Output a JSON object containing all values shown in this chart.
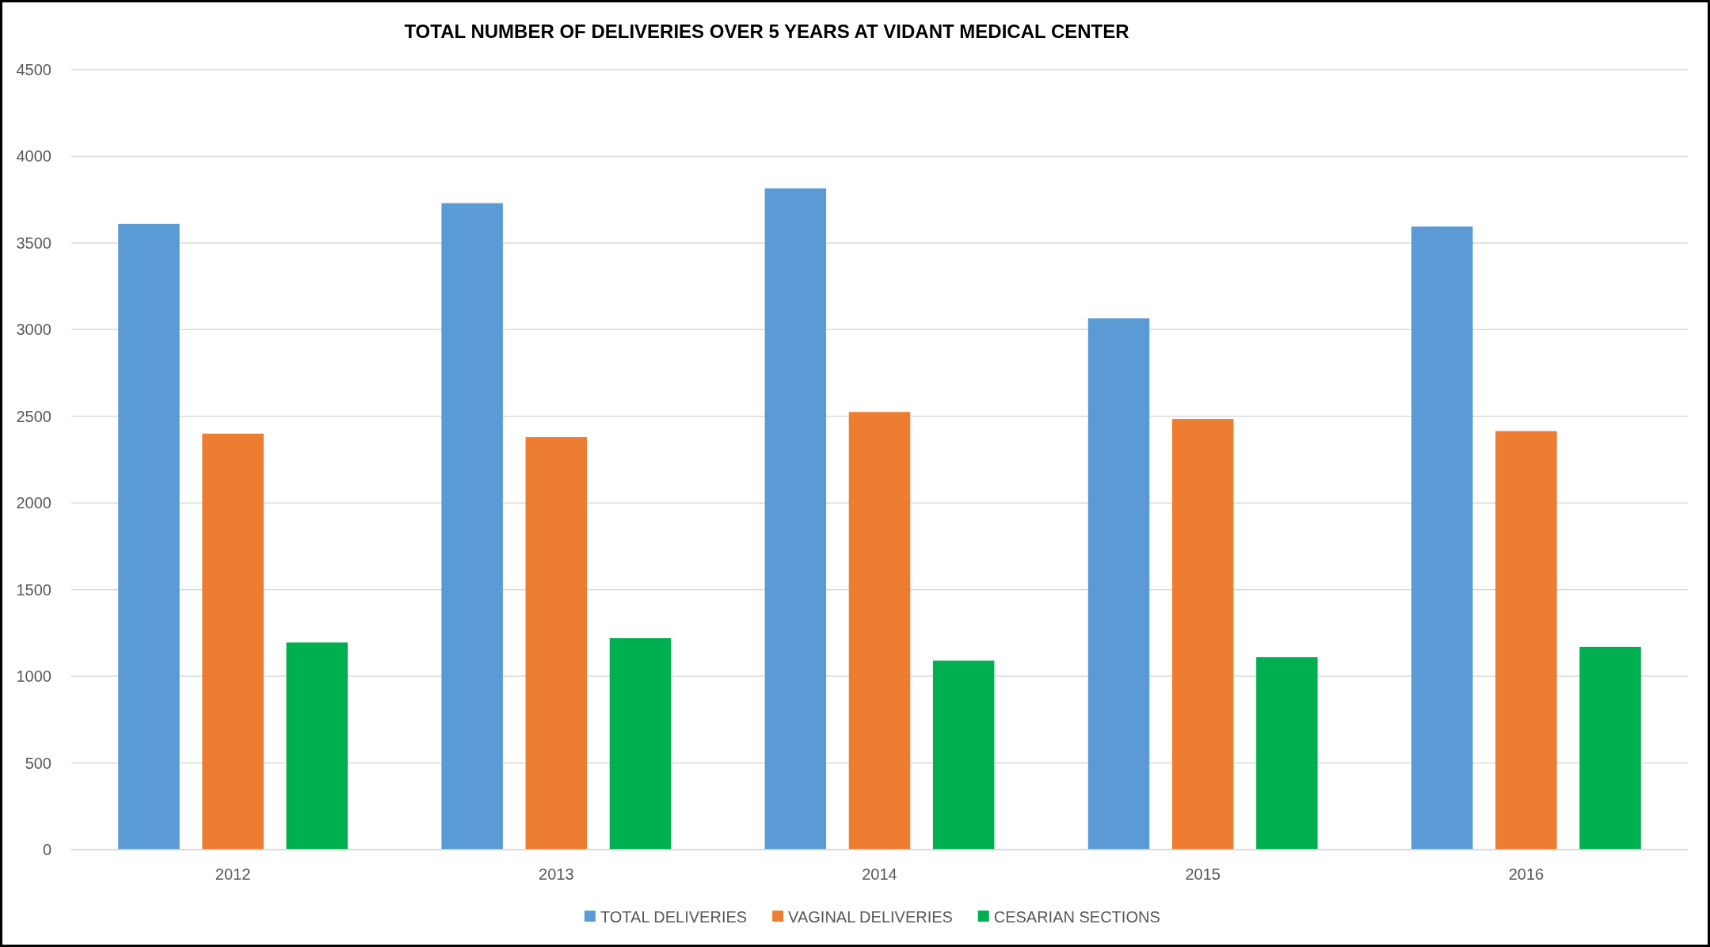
{
  "chart_data": {
    "type": "bar",
    "title": "TOTAL NUMBER OF DELIVERIES OVER 5 YEARS AT VIDANT MEDICAL CENTER",
    "categories": [
      "2012",
      "2013",
      "2014",
      "2015",
      "2016"
    ],
    "series": [
      {
        "name": "TOTAL DELIVERIES",
        "color": "#5b9bd5",
        "values": [
          3610,
          3730,
          3815,
          3065,
          3595
        ]
      },
      {
        "name": "VAGINAL DELIVERIES",
        "color": "#ed7d31",
        "values": [
          2400,
          2380,
          2525,
          2485,
          2415
        ]
      },
      {
        "name": "CESARIAN SECTIONS",
        "color": "#00b050",
        "values": [
          1195,
          1220,
          1090,
          1110,
          1170
        ]
      }
    ],
    "ylim": [
      0,
      4500
    ],
    "yticks": [
      0,
      500,
      1000,
      1500,
      2000,
      2500,
      3000,
      3500,
      4000,
      4500
    ],
    "grid": "y",
    "legend": "bottom"
  }
}
